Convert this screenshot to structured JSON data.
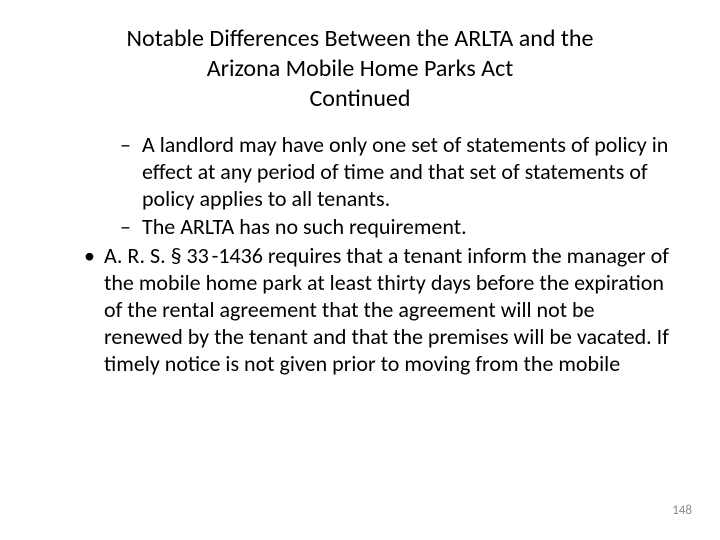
{
  "title_line1": "Notable Differences Between the ARLTA and the",
  "title_line2": "Arizona Mobile Home Parks Act",
  "title_line3": "Continued",
  "bullets": {
    "sub1": "A landlord may have only one set of statements of policy in effect at any period of time and that set of statements of policy applies to all tenants.",
    "sub2": "The ARLTA has no such requirement.",
    "main1": "A. R. S. § 33 -1436 requires that a tenant inform the manager of the mobile home park at least thirty days before the expiration of the rental agreement that the agreement will not be renewed by the tenant and that the premises will be vacated. If timely notice is not given prior to moving from the mobile"
  },
  "page_number": "148",
  "colors": {
    "background": "#ffffff",
    "text": "#000000",
    "pagenum": "#8a8a8a"
  },
  "typography": {
    "title_fontsize": 24,
    "body_fontsize": 22,
    "pagenum_fontsize": 13,
    "font_family": "Calibri"
  },
  "glyphs": {
    "dash": "–",
    "dot": "•"
  }
}
